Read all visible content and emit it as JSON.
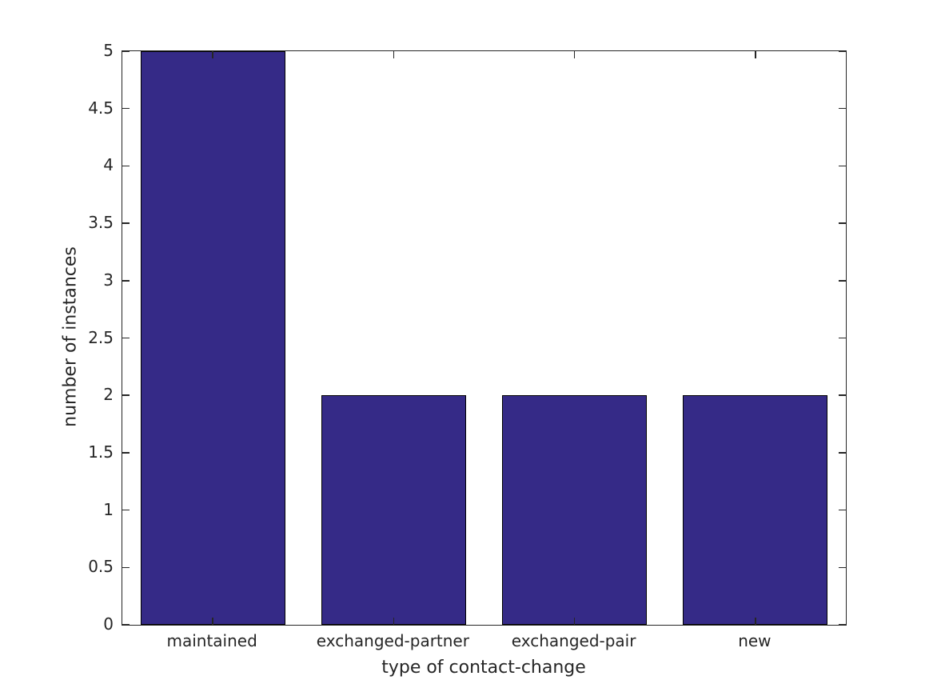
{
  "figure": {
    "background": "#ffffff"
  },
  "chart_data": {
    "type": "bar",
    "title": "",
    "xlabel": "type of contact-change",
    "ylabel": "number of instances",
    "categories": [
      "maintained",
      "exchanged-partner",
      "exchanged-pair",
      "new"
    ],
    "values": [
      5,
      2,
      2,
      2
    ],
    "ylim": [
      0,
      5
    ],
    "yticks": [
      0,
      0.5,
      1,
      1.5,
      2,
      2.5,
      3,
      3.5,
      4,
      4.5,
      5
    ],
    "ytick_labels": [
      "0",
      "0.5",
      "1",
      "1.5",
      "2",
      "2.5",
      "3",
      "3.5",
      "4",
      "4.5",
      "5"
    ],
    "bar_width_fraction": 0.8,
    "grid": false,
    "legend": null,
    "box": true,
    "tick_direction": "in",
    "colors": {
      "bar_fill": "#352A87",
      "bar_edge": "#000000",
      "axis_line": "#262626",
      "text": "#262626"
    }
  }
}
